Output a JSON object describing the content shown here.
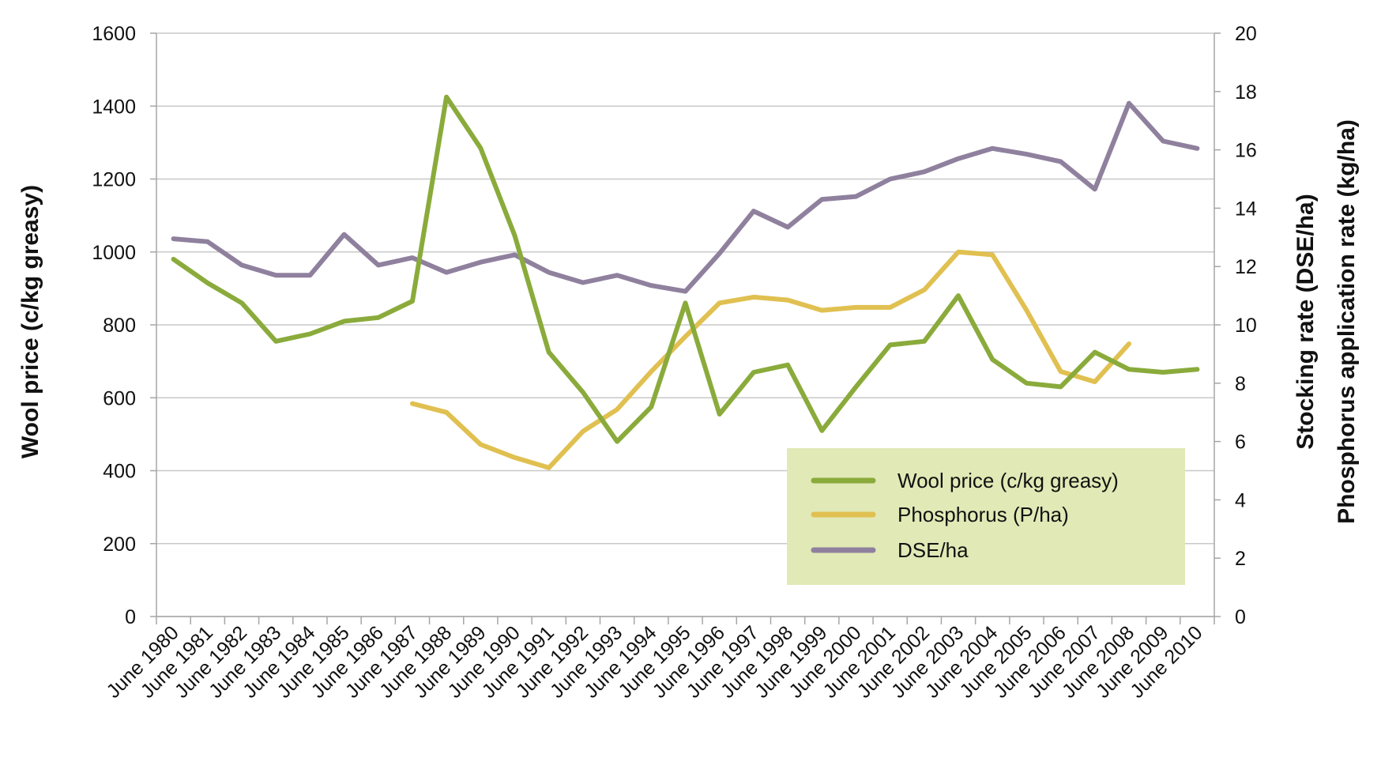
{
  "chart_data": {
    "type": "line",
    "categories": [
      "June 1980",
      "June 1981",
      "June 1982",
      "June 1983",
      "June 1984",
      "June 1985",
      "June 1986",
      "June 1987",
      "June 1988",
      "June 1989",
      "June 1990",
      "June 1991",
      "June 1992",
      "June 1993",
      "June 1994",
      "June 1995",
      "June 1996",
      "June 1997",
      "June 1998",
      "June 1999",
      "June 2000",
      "June 2001",
      "June 2002",
      "June 2003",
      "June 2004",
      "June 2005",
      "June 2006",
      "June 2007",
      "June 2008",
      "June 2009",
      "June 2010"
    ],
    "ylabel_left": "Wool price (c/kg greasy)",
    "ylabel_right": [
      "Stocking rate (DSE/ha)",
      "Phosphorus application rate (kg/ha)"
    ],
    "ylim_left": [
      0,
      1600
    ],
    "ylim_right": [
      0,
      20
    ],
    "yticks_left": [
      "0",
      "200",
      "400",
      "600",
      "800",
      "1000",
      "1200",
      "1400",
      "1600"
    ],
    "yticks_right": [
      "0",
      "2",
      "4",
      "6",
      "8",
      "10",
      "12",
      "14",
      "16",
      "18",
      "20"
    ],
    "grid": true,
    "legend_position": "bottom-right",
    "series": [
      {
        "name": "Wool price (c/kg greasy)",
        "axis": "left",
        "color": "#8aab3b",
        "values": [
          980,
          915,
          860,
          755,
          775,
          810,
          820,
          865,
          1425,
          1285,
          1045,
          725,
          615,
          480,
          575,
          860,
          555,
          670,
          690,
          510,
          630,
          745,
          755,
          880,
          705,
          640,
          630,
          725,
          678,
          670,
          678
        ]
      },
      {
        "name": "Phosphorus (P/ha)",
        "axis": "right",
        "color": "#e0c050",
        "values": [
          null,
          null,
          null,
          null,
          null,
          null,
          null,
          7.3,
          7.0,
          5.9,
          5.45,
          5.1,
          6.35,
          7.1,
          8.4,
          9.6,
          10.75,
          10.95,
          10.85,
          10.5,
          10.6,
          10.6,
          11.2,
          12.5,
          12.4,
          10.5,
          8.4,
          8.05,
          9.35,
          null,
          null
        ]
      },
      {
        "name": "DSE/ha",
        "axis": "right",
        "color": "#8f819e",
        "values": [
          12.95,
          12.85,
          12.05,
          11.7,
          11.7,
          13.1,
          12.05,
          12.3,
          11.8,
          12.15,
          12.4,
          11.8,
          11.45,
          11.7,
          11.35,
          11.15,
          12.45,
          13.9,
          13.35,
          14.3,
          14.4,
          15.0,
          15.25,
          15.7,
          16.05,
          15.85,
          15.6,
          14.65,
          17.6,
          16.3,
          16.05
        ]
      }
    ]
  }
}
